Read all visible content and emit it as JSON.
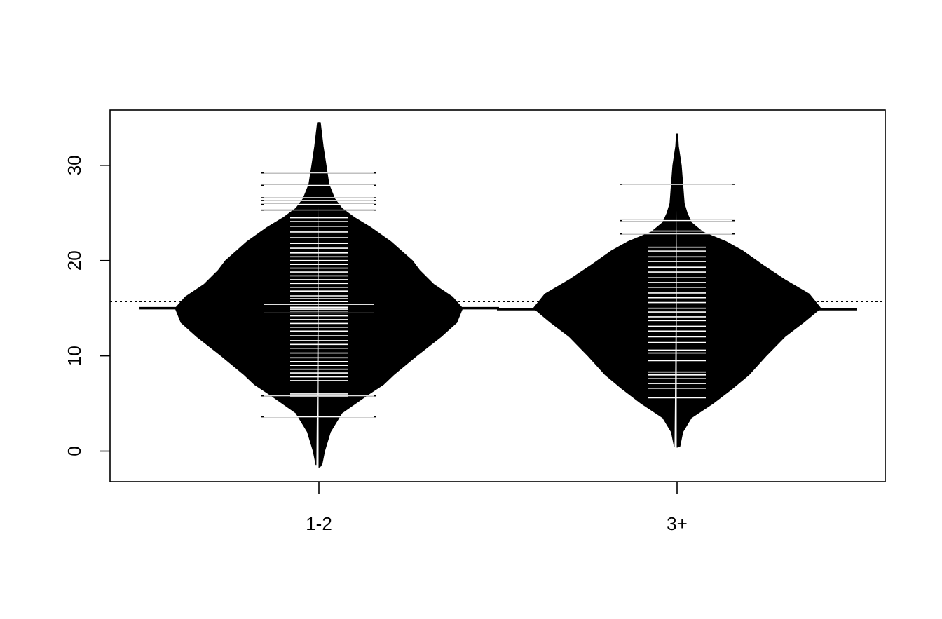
{
  "chart_data": {
    "type": "beanplot",
    "title": "",
    "xlabel": "",
    "ylabel": "",
    "categories": [
      "1-2",
      "3+"
    ],
    "ylim": [
      -3.2,
      35.8
    ],
    "y_ticks": [
      0,
      10,
      20,
      30
    ],
    "y_tick_labels": [
      "0",
      "10",
      "20",
      "30"
    ],
    "overall_mean": 15.7,
    "grid": false,
    "legend": "none",
    "beans": [
      {
        "category": "1-2",
        "mean": 15.0,
        "density_range": [
          -1.7,
          34.5
        ],
        "observations": [
          3.6,
          5.7,
          6.0,
          7.4,
          7.8,
          8.2,
          8.6,
          9.0,
          9.4,
          9.8,
          10.3,
          10.8,
          11.2,
          11.6,
          12.1,
          12.6,
          13.0,
          13.4,
          13.8,
          14.2,
          14.5,
          14.7,
          14.9,
          15.1,
          15.4,
          15.7,
          16.0,
          16.3,
          16.8,
          17.2,
          17.6,
          18.0,
          18.4,
          18.8,
          19.2,
          19.6,
          20.0,
          20.4,
          20.8,
          21.3,
          21.8,
          22.4,
          23.0,
          23.6,
          24.1,
          24.5,
          25.3,
          25.9,
          26.3,
          26.6,
          27.9,
          29.2
        ],
        "long_lines": [
          3.6,
          5.8,
          14.5,
          15.4,
          25.3,
          25.9,
          26.3,
          26.6,
          27.9,
          29.2
        ],
        "density": [
          [
            -1.5,
            0.02
          ],
          [
            0,
            0.04
          ],
          [
            2,
            0.08
          ],
          [
            4,
            0.16
          ],
          [
            6,
            0.35
          ],
          [
            7,
            0.45
          ],
          [
            8,
            0.52
          ],
          [
            10,
            0.68
          ],
          [
            12,
            0.85
          ],
          [
            13.5,
            0.96
          ],
          [
            15,
            1.0
          ],
          [
            16.2,
            0.93
          ],
          [
            17.5,
            0.8
          ],
          [
            19,
            0.7
          ],
          [
            20,
            0.65
          ],
          [
            22,
            0.5
          ],
          [
            23.5,
            0.36
          ],
          [
            24.5,
            0.25
          ],
          [
            25.5,
            0.16
          ],
          [
            26.5,
            0.11
          ],
          [
            28,
            0.07
          ],
          [
            30,
            0.05
          ],
          [
            32,
            0.03
          ],
          [
            34.5,
            0.01
          ]
        ]
      },
      {
        "category": "3+",
        "mean": 14.9,
        "density_range": [
          0.4,
          33.3
        ],
        "observations": [
          5.6,
          6.6,
          7.1,
          7.6,
          8.0,
          8.3,
          9.5,
          10.3,
          10.6,
          11.4,
          12.0,
          12.6,
          13.1,
          13.7,
          14.1,
          14.6,
          15.0,
          15.6,
          16.1,
          16.6,
          17.2,
          17.7,
          18.2,
          18.8,
          19.3,
          19.9,
          20.4,
          21.0,
          21.4,
          22.8,
          23.1,
          24.2,
          28.0
        ],
        "long_lines": [
          22.8,
          24.2,
          28.0
        ],
        "density": [
          [
            0.5,
            0.02
          ],
          [
            2,
            0.04
          ],
          [
            3.5,
            0.1
          ],
          [
            5,
            0.25
          ],
          [
            6.5,
            0.38
          ],
          [
            8,
            0.5
          ],
          [
            10,
            0.62
          ],
          [
            12,
            0.75
          ],
          [
            13.5,
            0.88
          ],
          [
            15,
            1.0
          ],
          [
            16.5,
            0.92
          ],
          [
            18,
            0.75
          ],
          [
            19.5,
            0.6
          ],
          [
            21,
            0.46
          ],
          [
            22,
            0.34
          ],
          [
            23,
            0.18
          ],
          [
            24,
            0.1
          ],
          [
            25,
            0.07
          ],
          [
            26,
            0.05
          ],
          [
            28,
            0.04
          ],
          [
            30,
            0.03
          ],
          [
            32,
            0.01
          ],
          [
            33.3,
            0.005
          ]
        ]
      }
    ]
  }
}
